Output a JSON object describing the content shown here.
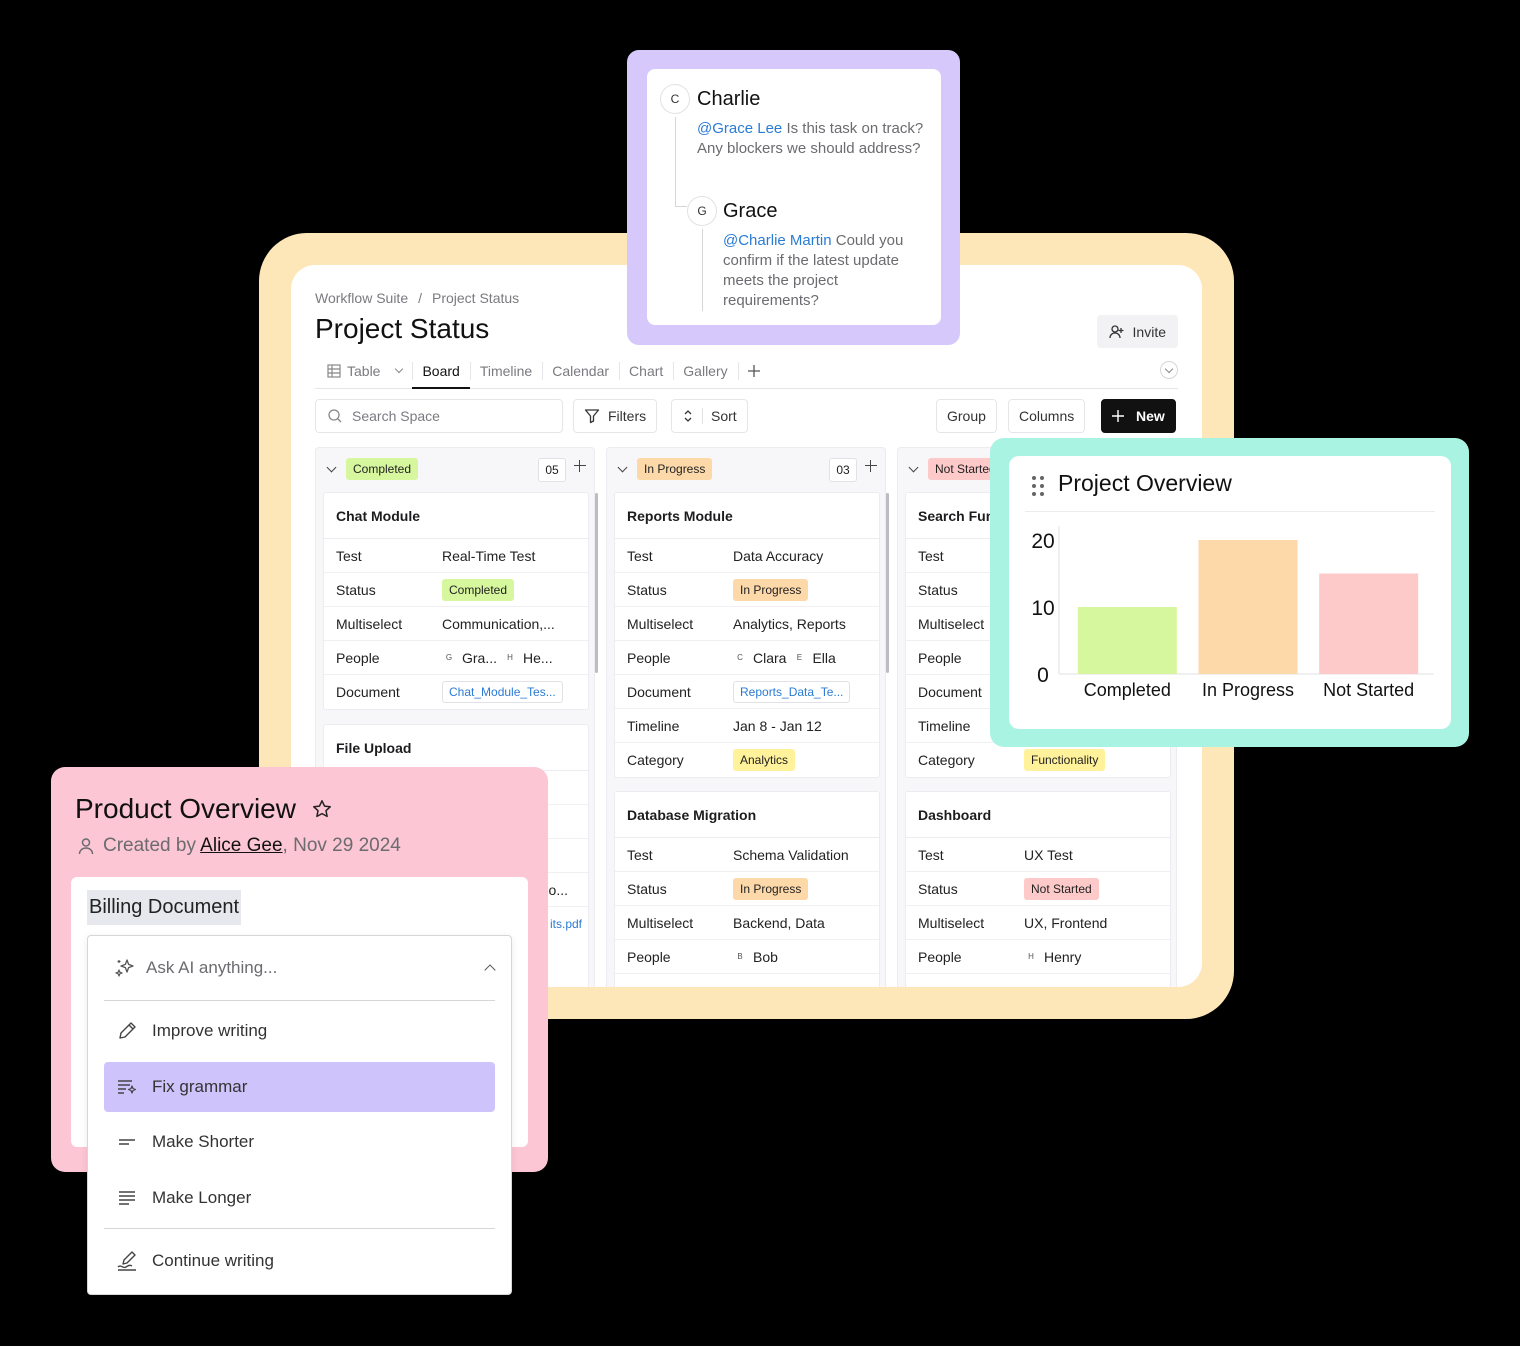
{
  "board": {
    "breadcrumb": [
      "Workflow Suite",
      "Project Status"
    ],
    "breadcrumb_sep": "/",
    "title": "Project Status",
    "invite_label": "Invite",
    "tabs": [
      {
        "label": "Table",
        "icon": "table-icon",
        "active": false
      },
      {
        "label": "Board",
        "active": true
      },
      {
        "label": "Timeline",
        "active": false
      },
      {
        "label": "Calendar",
        "active": false
      },
      {
        "label": "Chart",
        "active": false
      },
      {
        "label": "Gallery",
        "active": false
      }
    ],
    "search_placeholder": "Search Space",
    "filters_label": "Filters",
    "sort_label": "Sort",
    "group_label": "Group",
    "columns_label": "Columns",
    "new_label": "New",
    "columns": [
      {
        "status": "Completed",
        "count": "05",
        "cards": [
          {
            "title": "Chat Module",
            "rows": [
              {
                "k": "Test",
                "v": "Real-Time Test"
              },
              {
                "k": "Status",
                "v": "Completed"
              },
              {
                "k": "Multiselect",
                "v": "Communication,..."
              },
              {
                "k": "People",
                "p1i": "G",
                "p1": "Gra...",
                "p2i": "H",
                "p2": "He..."
              },
              {
                "k": "Document",
                "v": "Chat_Module_Tes..."
              }
            ]
          },
          {
            "title": "File Upload",
            "partial": [
              "tio...",
              "its.pdf"
            ]
          }
        ]
      },
      {
        "status": "In Progress",
        "count": "03",
        "cards": [
          {
            "title": "Reports Module",
            "rows": [
              {
                "k": "Test",
                "v": "Data Accuracy"
              },
              {
                "k": "Status",
                "v": "In Progress"
              },
              {
                "k": "Multiselect",
                "v": "Analytics, Reports"
              },
              {
                "k": "People",
                "p1i": "C",
                "p1": "Clara",
                "p2i": "E",
                "p2": "Ella"
              },
              {
                "k": "Document",
                "v": "Reports_Data_Te..."
              },
              {
                "k": "Timeline",
                "v": "Jan 8 - Jan 12"
              },
              {
                "k": "Category",
                "v": "Analytics"
              }
            ]
          },
          {
            "title": "Database Migration",
            "rows": [
              {
                "k": "Test",
                "v": "Schema Validation"
              },
              {
                "k": "Status",
                "v": "In Progress"
              },
              {
                "k": "Multiselect",
                "v": "Backend, Data"
              },
              {
                "k": "People",
                "p1i": "B",
                "p1": "Bob"
              }
            ]
          }
        ]
      },
      {
        "status": "Not Started",
        "cards": [
          {
            "title": "Search Functionality",
            "rows": [
              {
                "k": "Test"
              },
              {
                "k": "Status"
              },
              {
                "k": "Multiselect"
              },
              {
                "k": "People"
              },
              {
                "k": "Document"
              },
              {
                "k": "Timeline"
              },
              {
                "k": "Category",
                "v": "Functionality"
              }
            ]
          },
          {
            "title": "Dashboard",
            "rows": [
              {
                "k": "Test",
                "v": "UX Test"
              },
              {
                "k": "Status",
                "v": "Not Started"
              },
              {
                "k": "Multiselect",
                "v": "UX, Frontend"
              },
              {
                "k": "People",
                "p1i": "H",
                "p1": "Henry"
              }
            ]
          }
        ]
      }
    ]
  },
  "comments": {
    "first": {
      "initial": "C",
      "name": "Charlie",
      "mention": "@Grace Lee",
      "text": " Is this task on track? Any blockers we should address?"
    },
    "reply": {
      "initial": "G",
      "name": "Grace",
      "mention": "@Charlie Martin",
      "text": " Could you confirm if the latest update meets the project requirements?"
    }
  },
  "overview_chart": {
    "title": "Project Overview",
    "icon": "drag-handle-icon"
  },
  "chart_data": {
    "type": "bar",
    "title": "Project Overview",
    "categories": [
      "Completed",
      "In Progress",
      "Not Started"
    ],
    "values": [
      10,
      20,
      15
    ],
    "colors": [
      "#d7f79f",
      "#fdd8a8",
      "#fdc9c9"
    ],
    "yticks": [
      0,
      10,
      20
    ],
    "ylim": [
      0,
      20
    ],
    "grid": false,
    "legend": "none"
  },
  "product": {
    "title": "Product Overview",
    "created_prefix": "Created by ",
    "author": "Alice Gee",
    "date": ", Nov 29 2024",
    "doc_title": "Billing Document",
    "ai_placeholder": "Ask AI anything...",
    "ai_items": [
      {
        "label": "Improve writing",
        "icon": "pen-icon"
      },
      {
        "label": "Fix grammar",
        "icon": "fix-grammar-icon",
        "selected": true
      },
      {
        "label": "Make Shorter",
        "icon": "short-lines-icon"
      },
      {
        "label": "Make Longer",
        "icon": "long-lines-icon"
      },
      {
        "label": "Continue writing",
        "icon": "continue-writing-icon"
      }
    ]
  }
}
